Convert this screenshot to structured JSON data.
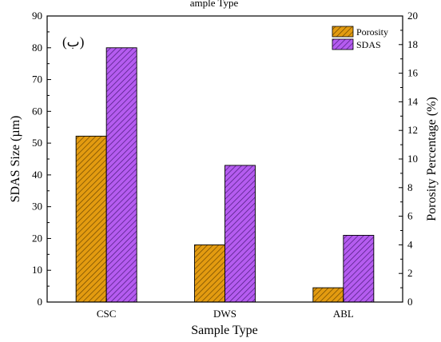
{
  "chart_data": {
    "type": "bar",
    "top_label": "ample Type",
    "panel_label": "(ب)",
    "categories": [
      "CSC",
      "DWS",
      "ABL"
    ],
    "series": [
      {
        "name": "Porosity",
        "axis": "right",
        "values": [
          11.6,
          4.0,
          1.0
        ],
        "color": "#E39B10",
        "hatch": "#6b4600"
      },
      {
        "name": "SDAS",
        "axis": "left",
        "values": [
          80,
          43,
          21
        ],
        "color": "#B55CF0",
        "hatch": "#4a1a7a"
      }
    ],
    "xlabel": "Sample Type",
    "ylabel": "SDAS Size (µm)",
    "y2label": "Porosity Percentage (%)",
    "ylim": [
      0,
      90
    ],
    "y2lim": [
      0,
      20
    ],
    "yticks": [
      0,
      10,
      20,
      30,
      40,
      50,
      60,
      70,
      80,
      90
    ],
    "y2ticks": [
      0,
      2,
      4,
      6,
      8,
      10,
      12,
      14,
      16,
      18,
      20
    ],
    "legend_position": "top-right",
    "grid": false
  }
}
